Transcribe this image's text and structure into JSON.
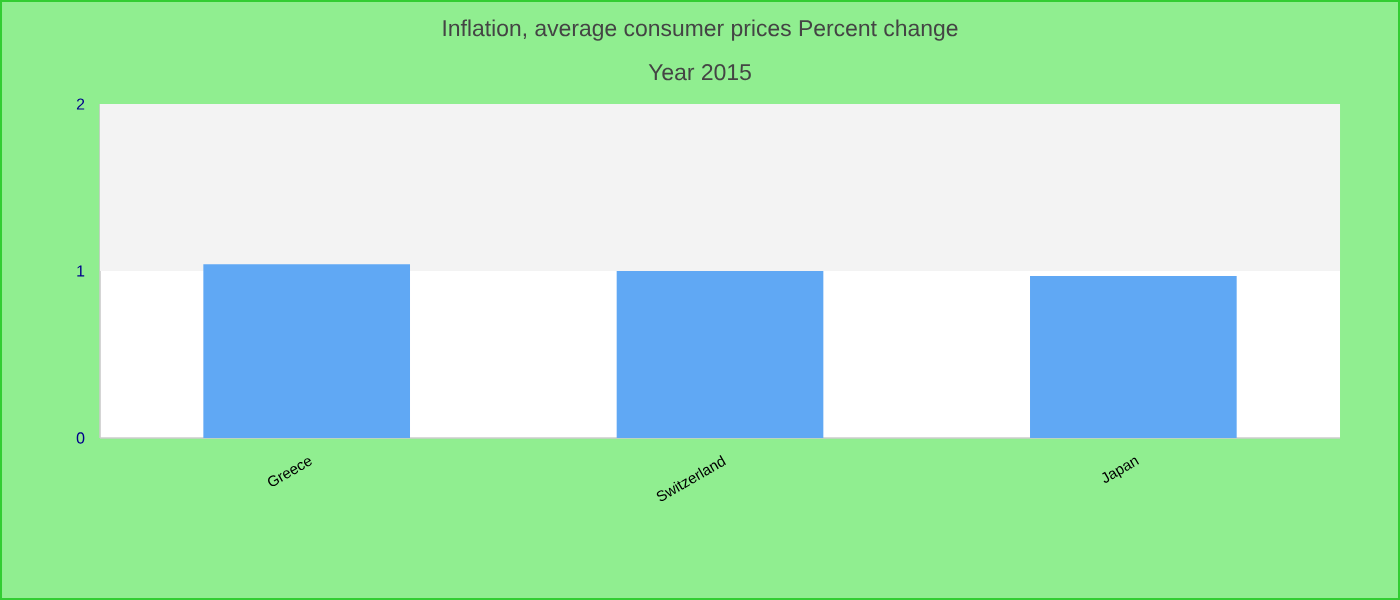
{
  "chart_data": {
    "type": "bar",
    "title": "Inflation, average consumer prices  Percent change",
    "subtitle": "Year 2015",
    "categories": [
      "Greece",
      "Switzerland",
      "Japan"
    ],
    "values": [
      1.04,
      1.0,
      0.97
    ],
    "color": "#60a8f4",
    "ylim": [
      0,
      2
    ],
    "yticks": [
      0,
      1,
      2
    ],
    "bands": [
      {
        "axis": "y",
        "from": 1,
        "to": 2,
        "color": "#f3f3f3"
      }
    ],
    "grid": false
  }
}
